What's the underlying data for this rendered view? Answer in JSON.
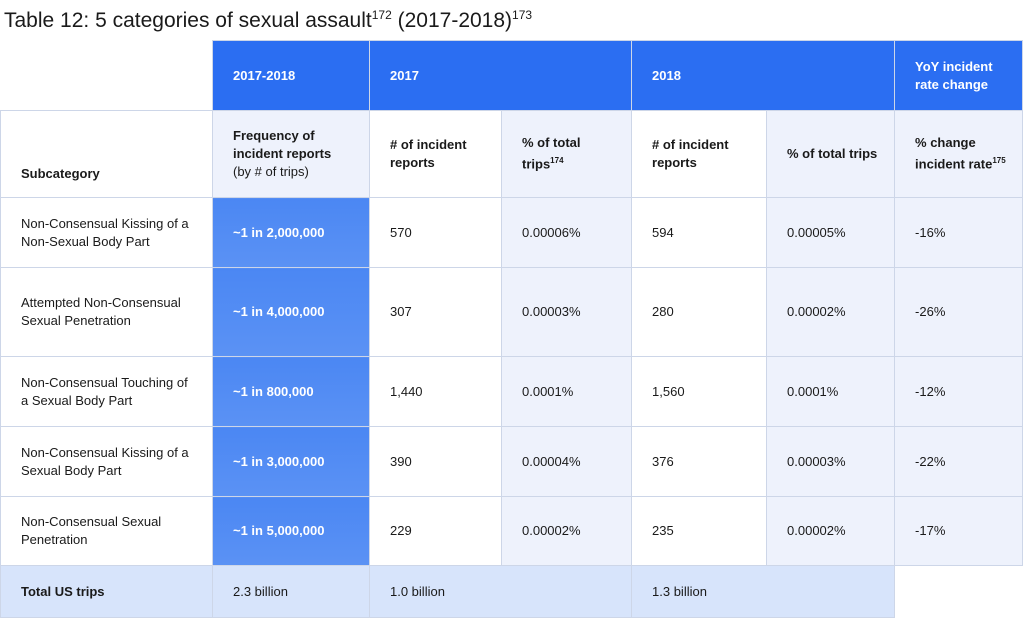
{
  "title": {
    "text": "Table 12: 5 categories of sexual assault",
    "sup1": "172",
    "years": "(2017-2018)",
    "sup2": "173"
  },
  "table": {
    "group_headers": [
      "2017-2018",
      "2017",
      "2018",
      "YoY incident rate change"
    ],
    "column_headers": [
      {
        "text": "Subcategory"
      },
      {
        "text": "Frequency of incident reports",
        "note": "(by # of trips)"
      },
      {
        "text": "# of incident reports"
      },
      {
        "text": "% of total trips",
        "sup": "174"
      },
      {
        "text": "# of incident reports"
      },
      {
        "text": "% of total trips"
      },
      {
        "text": "% change incident rate",
        "sup": "175"
      }
    ],
    "rows": [
      [
        "Non-Consensual Kissing of a Non-Sexual Body Part",
        "~1 in 2,000,000",
        "570",
        "0.00006%",
        "594",
        "0.00005%",
        "-16%"
      ],
      [
        "Attempted Non-Consensual Sexual Penetration",
        "~1 in 4,000,000",
        "307",
        "0.00003%",
        "280",
        "0.00002%",
        "-26%"
      ],
      [
        "Non-Consensual Touching of a Sexual Body Part",
        "~1 in 800,000",
        "1,440",
        "0.0001%",
        "1,560",
        "0.0001%",
        "-12%"
      ],
      [
        "Non-Consensual Kissing of a Sexual Body Part",
        "~1 in 3,000,000",
        "390",
        "0.00004%",
        "376",
        "0.00003%",
        "-22%"
      ],
      [
        "Non-Consensual Sexual Penetration",
        "~1 in 5,000,000",
        "229",
        "0.00002%",
        "235",
        "0.00002%",
        "-17%"
      ]
    ],
    "total": [
      "Total US trips",
      "2.3 billion",
      "1.0 billion",
      "1.3 billion"
    ]
  }
}
